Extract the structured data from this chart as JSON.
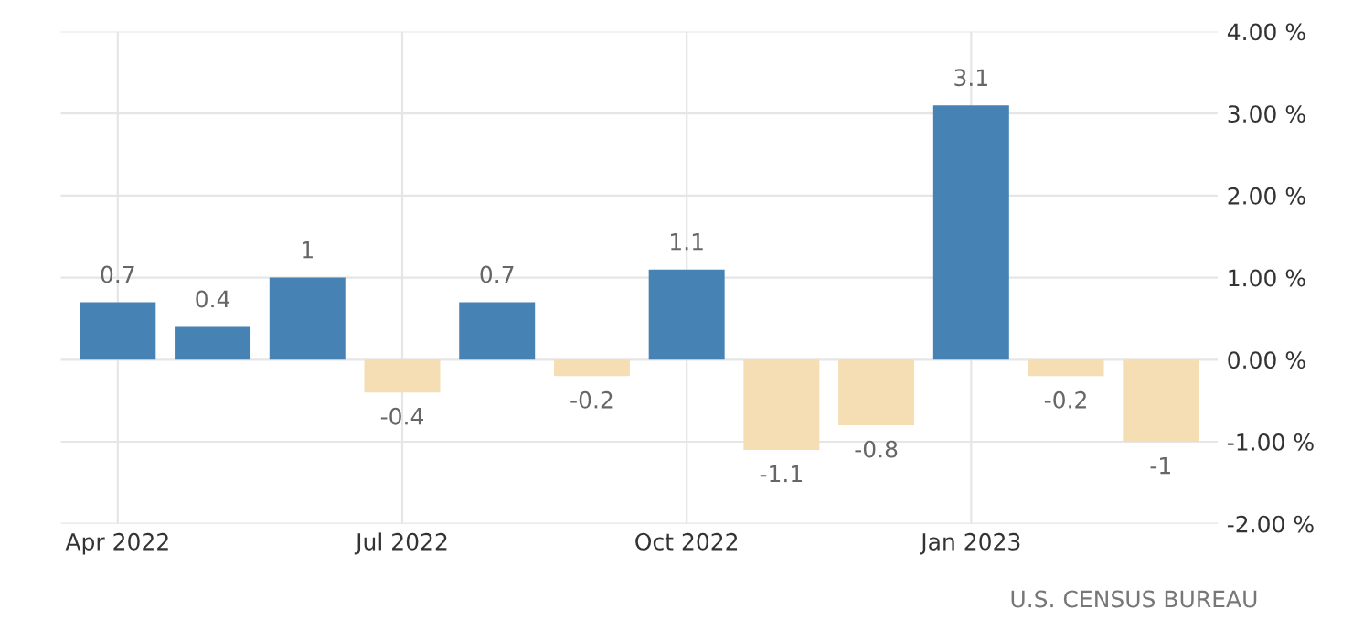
{
  "chart_data": {
    "type": "bar",
    "categories": [
      "Apr 2022",
      null,
      null,
      "Jul 2022",
      null,
      null,
      "Oct 2022",
      null,
      null,
      "Jan 2023",
      null,
      null
    ],
    "values": [
      0.7,
      0.4,
      1,
      -0.4,
      0.7,
      -0.2,
      1.1,
      -1.1,
      -0.8,
      3.1,
      -0.2,
      -1
    ],
    "colors": [
      "#4682b4",
      "#4682b4",
      "#4682b4",
      "#f5deb3",
      "#4682b4",
      "#f5deb3",
      "#4682b4",
      "#f5deb3",
      "#f5deb3",
      "#4682b4",
      "#f5deb3",
      "#f5deb3"
    ],
    "ylim": [
      -2,
      4
    ],
    "yticks": [
      {
        "value": -2,
        "label": "-2.00 %"
      },
      {
        "value": -1,
        "label": "-1.00 %"
      },
      {
        "value": 0,
        "label": "0.00 %"
      },
      {
        "value": 1,
        "label": "1.00 %"
      },
      {
        "value": 2,
        "label": "2.00 %"
      },
      {
        "value": 3,
        "label": "3.00 %"
      },
      {
        "value": 4,
        "label": "4.00 %"
      }
    ],
    "grid": true,
    "data_labels": true,
    "annotations": [
      "U.S. CENSUS BUREAU"
    ]
  }
}
